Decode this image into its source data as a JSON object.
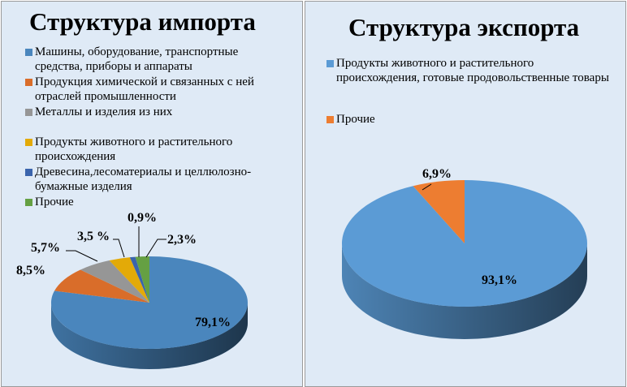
{
  "chart_data": [
    {
      "type": "pie",
      "style": "3d",
      "title": "Структура импорта",
      "legend_position": "top",
      "slices": [
        {
          "label": "Машины, оборудование, транспортные средства, приборы и аппараты",
          "value": 79.1,
          "data_label": "79,1%",
          "color": "#4a86bd"
        },
        {
          "label": "Продукция химической и связанных с ней отраслей промышленности",
          "value": 8.5,
          "data_label": "8,5%",
          "color": "#d96d2a"
        },
        {
          "label": "Металлы и изделия из них",
          "value": 5.7,
          "data_label": "5,7%",
          "color": "#969696"
        },
        {
          "label": "Продукты животного и растительного происхождения",
          "value": 3.5,
          "data_label": "3,5 %",
          "color": "#e3aa08"
        },
        {
          "label": "Древесина,лесоматериалы и целлюлозно-бумажные изделия",
          "value": 0.9,
          "data_label": "0,9%",
          "color": "#3a64ac"
        },
        {
          "label": "Прочие",
          "value": 2.3,
          "data_label": "2,3%",
          "color": "#65a043"
        }
      ]
    },
    {
      "type": "pie",
      "style": "3d",
      "title": "Структура экспорта",
      "legend_position": "top",
      "slices": [
        {
          "label": "Продукты животного и растительного происхождения, готовые продовольственные товары",
          "value": 93.1,
          "data_label": "93,1%",
          "color": "#5b9bd5"
        },
        {
          "label": "Прочие",
          "value": 6.9,
          "data_label": "6,9%",
          "color": "#ed7d31"
        }
      ]
    }
  ]
}
